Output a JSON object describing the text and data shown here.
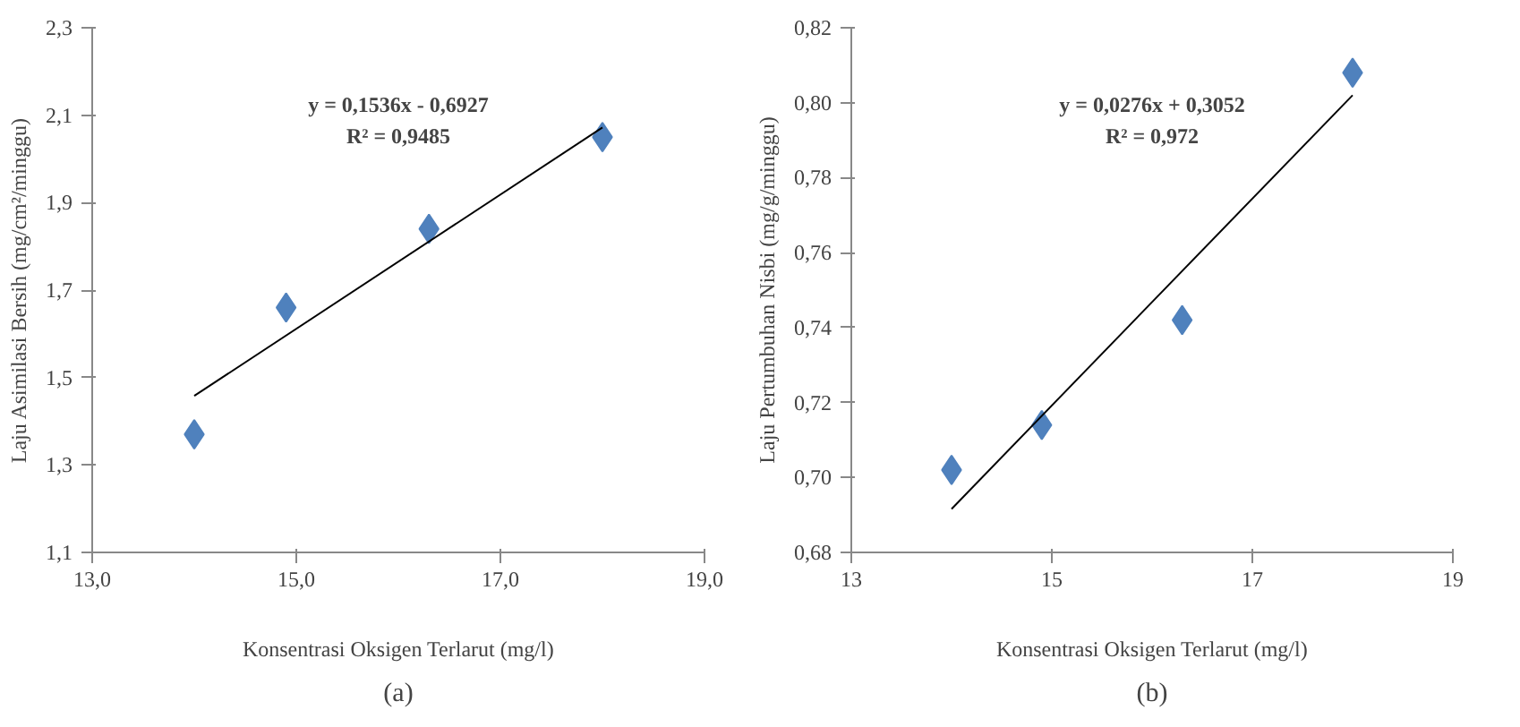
{
  "chart_data": [
    {
      "type": "scatter",
      "title": "(a)",
      "xlabel": "Konsentrasi Oksigen Terlarut (mg/l)",
      "ylabel": "Laju Asimilasi Bersih (mg/cm²/minggu)",
      "marker": "diamond",
      "grid": false,
      "xlim": [
        13.0,
        19.0
      ],
      "ylim": [
        1.1,
        2.3
      ],
      "xticks": [
        {
          "value": 13,
          "label": "13,0"
        },
        {
          "value": 15,
          "label": "15,0"
        },
        {
          "value": 17,
          "label": "17,0"
        },
        {
          "value": 19,
          "label": "19,0"
        }
      ],
      "yticks": [
        {
          "value": 1.1,
          "label": "1,1"
        },
        {
          "value": 1.3,
          "label": "1,3"
        },
        {
          "value": 1.5,
          "label": "1,5"
        },
        {
          "value": 1.7,
          "label": "1,7"
        },
        {
          "value": 1.9,
          "label": "1,9"
        },
        {
          "value": 2.1,
          "label": "2,1"
        },
        {
          "value": 2.3,
          "label": "2,3"
        }
      ],
      "annotations": [
        "y = 0,1536x - 0,6927",
        "R² = 0,9485"
      ],
      "series": [
        {
          "color": "#4f81bd",
          "x": [
            14.0,
            14.9,
            16.3,
            18.0
          ],
          "values": [
            1.37,
            1.66,
            1.84,
            2.05
          ]
        },
        {
          "type": "line",
          "color": "#000000",
          "marker": "none",
          "x": [
            14.0,
            18.0
          ],
          "values": [
            1.458,
            2.072
          ]
        }
      ]
    },
    {
      "type": "scatter",
      "title": "(b)",
      "xlabel": "Konsentrasi Oksigen Terlarut (mg/l)",
      "ylabel": "Laju Pertumbuhan Nisbi (mg/g/minggu)",
      "marker": "diamond",
      "grid": false,
      "xlim": [
        13,
        19
      ],
      "ylim": [
        0.68,
        0.82
      ],
      "xticks": [
        13,
        15,
        17,
        19
      ],
      "yticks": [
        {
          "value": 0.68,
          "label": "0,68"
        },
        {
          "value": 0.7,
          "label": "0,70"
        },
        {
          "value": 0.72,
          "label": "0,72"
        },
        {
          "value": 0.74,
          "label": "0,74"
        },
        {
          "value": 0.76,
          "label": "0,76"
        },
        {
          "value": 0.78,
          "label": "0,78"
        },
        {
          "value": 0.8,
          "label": "0,80"
        },
        {
          "value": 0.82,
          "label": "0,82"
        }
      ],
      "annotations": [
        "y = 0,0276x + 0,3052",
        "R² = 0,972"
      ],
      "series": [
        {
          "color": "#4f81bd",
          "x": [
            14.0,
            14.9,
            16.3,
            18.0
          ],
          "values": [
            0.702,
            0.714,
            0.742,
            0.808
          ]
        },
        {
          "type": "line",
          "color": "#000000",
          "marker": "none",
          "x": [
            14.0,
            18.0
          ],
          "values": [
            0.6916,
            0.802
          ]
        }
      ]
    }
  ]
}
